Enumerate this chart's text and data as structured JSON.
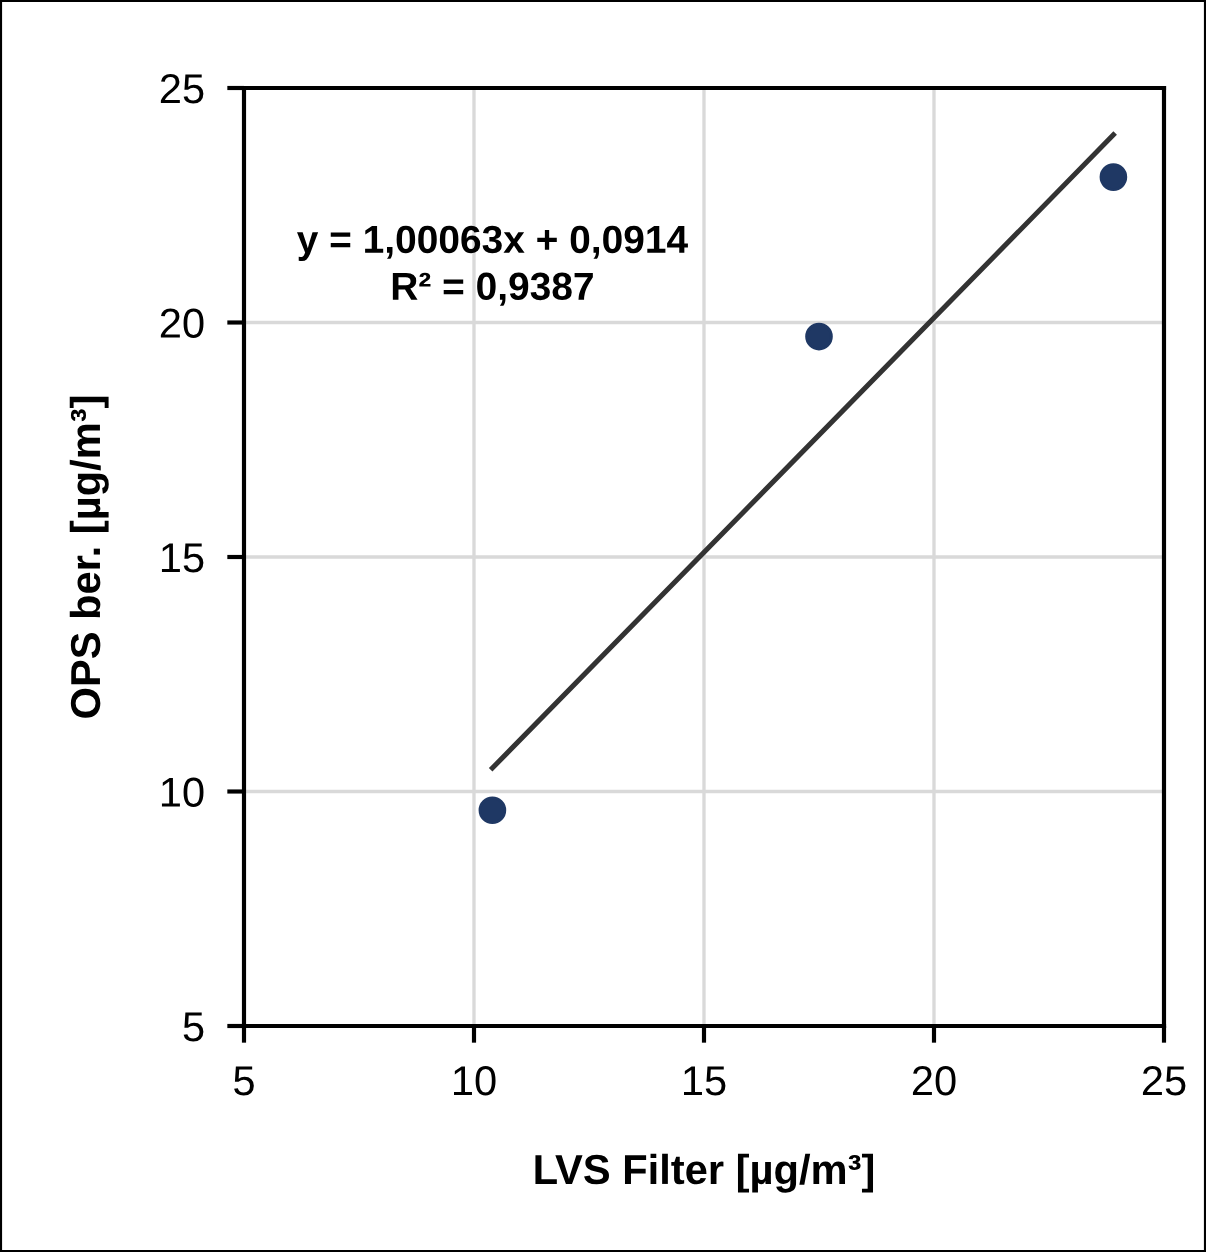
{
  "chart_data": {
    "type": "scatter",
    "xlabel": "LVS Filter [µg/m³]",
    "ylabel": "OPS ber. [µg/m³]",
    "series": [
      {
        "color": "#1f3864",
        "x": [
          10.4,
          17.5,
          23.9
        ],
        "values": [
          9.6,
          19.7,
          23.1
        ],
        "marker": "circle"
      },
      {
        "type": "line",
        "color": "#333333",
        "x": [
          10.4,
          23.9
        ],
        "values": [
          10.5,
          24.0
        ],
        "marker": "none",
        "line_style": "solid"
      }
    ],
    "annotations": [
      "y = 1,00063x + 0,0914",
      "R² = 0,9387"
    ],
    "xlim": [
      5,
      25
    ],
    "ylim": [
      5,
      25
    ],
    "xticks": [
      5,
      10,
      15,
      20,
      25
    ],
    "yticks": [
      5,
      10,
      15,
      20,
      25
    ],
    "grid": true,
    "legend": false
  }
}
